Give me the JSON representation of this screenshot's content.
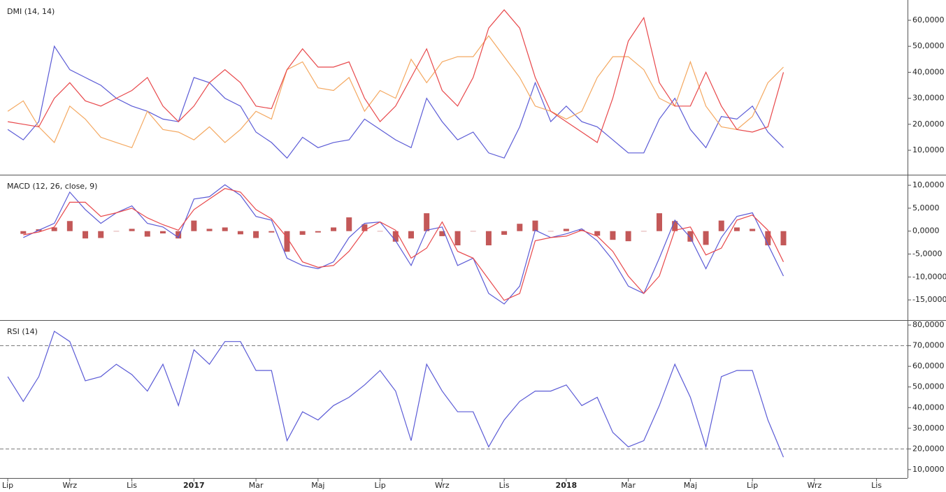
{
  "chart_data": [
    {
      "type": "line",
      "title": "DMI (14, 14)",
      "x": [
        0,
        0.5,
        1,
        1.5,
        2,
        2.5,
        3,
        3.5,
        4,
        4.5,
        5,
        5.5,
        6,
        6.5,
        7,
        7.5,
        8,
        8.5,
        9,
        9.5,
        10,
        10.5,
        11,
        11.5,
        12,
        12.5,
        13,
        13.5,
        14,
        14.5,
        15,
        15.5,
        16,
        16.5,
        17,
        17.5,
        18,
        18.5,
        19,
        19.5,
        20,
        20.5,
        21,
        21.5,
        22,
        22.5,
        23,
        23.5,
        24,
        24.5,
        25
      ],
      "xlim": [
        -0.25,
        29
      ],
      "ylim": [
        0.6,
        67.8
      ],
      "yticks": [
        {
          "value": 10,
          "label": "10,0000"
        },
        {
          "value": 20,
          "label": "20,0000"
        },
        {
          "value": 30,
          "label": "30,0000"
        },
        {
          "value": 40,
          "label": "40,0000"
        },
        {
          "value": 50,
          "label": "50,0000"
        },
        {
          "value": 60,
          "label": "60,0000"
        }
      ],
      "series": [
        {
          "color": "#5b5bd6",
          "values": [
            18,
            14,
            21,
            50,
            41,
            38,
            35,
            30,
            27,
            25,
            22,
            21,
            38,
            36,
            30,
            27,
            17,
            13,
            7,
            15,
            11,
            13,
            14,
            22,
            18,
            14,
            11,
            30,
            21,
            14,
            17,
            9,
            7,
            19,
            36,
            21,
            27,
            21,
            19,
            14,
            9,
            9,
            22,
            30,
            18,
            11,
            23,
            22,
            27,
            17,
            11
          ]
        },
        {
          "color": "#f4a860",
          "values": [
            25,
            29,
            19,
            13,
            27,
            22,
            15,
            13,
            11,
            25,
            18,
            17,
            14,
            19,
            13,
            18,
            25,
            22,
            41,
            44,
            34,
            33,
            38,
            25,
            33,
            30,
            45,
            36,
            44,
            46,
            46,
            54,
            46,
            38,
            27,
            25,
            22,
            25,
            38,
            46,
            46,
            41,
            30,
            27,
            44,
            27,
            19,
            18,
            23,
            36,
            42
          ]
        },
        {
          "color": "#e8484b",
          "values": [
            21,
            20,
            19,
            30,
            36,
            29,
            27,
            30,
            33,
            38,
            27,
            21,
            27,
            36,
            41,
            36,
            27,
            26,
            41,
            49,
            42,
            42,
            44,
            30,
            21,
            27,
            38,
            49,
            33,
            27,
            38,
            57,
            64,
            57,
            38,
            25,
            21,
            17,
            13,
            30,
            52,
            61,
            36,
            27,
            27,
            40,
            27,
            18,
            17,
            19,
            40
          ]
        }
      ]
    },
    {
      "type": "line",
      "title": "MACD (12, 26, close, 9)",
      "x": [
        0,
        0.5,
        1,
        1.5,
        2,
        2.5,
        3,
        3.5,
        4,
        4.5,
        5,
        5.5,
        6,
        6.5,
        7,
        7.5,
        8,
        8.5,
        9,
        9.5,
        10,
        10.5,
        11,
        11.5,
        12,
        12.5,
        13,
        13.5,
        14,
        14.5,
        15,
        15.5,
        16,
        16.5,
        17,
        17.5,
        18,
        18.5,
        19,
        19.5,
        20,
        20.5,
        21,
        21.5,
        22,
        22.5,
        23,
        23.5,
        24,
        24.5,
        25
      ],
      "xlim": [
        -0.25,
        29
      ],
      "ylim": [
        -19.4,
        12.3
      ],
      "yticks": [
        {
          "value": -15,
          "label": "-15,0000"
        },
        {
          "value": -10,
          "label": "-10,0000"
        },
        {
          "value": -5,
          "label": "-5,0000"
        },
        {
          "value": 0,
          "label": "0,0000"
        },
        {
          "value": 5,
          "label": "5,0000"
        },
        {
          "value": 10,
          "label": "10,0000"
        }
      ],
      "series": [
        {
          "type": "bar",
          "color": "#b83b3b",
          "values": [
            null,
            -0.6,
            0.4,
            0.8,
            2.2,
            -1.6,
            -1.5,
            0,
            0.5,
            -1.2,
            -0.5,
            -1.6,
            2.3,
            0.5,
            0.8,
            -0.7,
            -1.5,
            -0.3,
            -4.5,
            -0.8,
            -0.3,
            0.8,
            3.0,
            1.5,
            0,
            -2.3,
            -1.6,
            3.9,
            -1.1,
            -3.1,
            0,
            -3.1,
            -0.8,
            1.6,
            2.3,
            0,
            0.5,
            0.3,
            -1.0,
            -1.9,
            -2.2,
            0,
            3.9,
            2.2,
            -2.3,
            -3.0,
            2.3,
            0.8,
            0.5,
            -3.1,
            -3.1
          ]
        },
        {
          "color": "#5b5bd6",
          "values": [
            null,
            -1.4,
            0.2,
            1.7,
            8.5,
            4.7,
            1.7,
            4.0,
            5.5,
            1.7,
            0.9,
            -1.4,
            7.0,
            7.5,
            10.1,
            7.8,
            3.2,
            2.4,
            -5.9,
            -7.5,
            -8.2,
            -6.7,
            -1.4,
            1.7,
            2.0,
            -2.1,
            -7.5,
            0.2,
            0.9,
            -7.5,
            -5.9,
            -13.6,
            -15.9,
            -12.0,
            0.2,
            -1.4,
            -0.6,
            0.5,
            -2.1,
            -6.3,
            -12.0,
            -13.6,
            -5.9,
            2.4,
            -1.4,
            -8.2,
            -1.4,
            3.2,
            4.0,
            -2.9,
            -9.8
          ]
        },
        {
          "color": "#e8484b",
          "values": [
            null,
            -0.8,
            -0.2,
            0.9,
            6.3,
            6.3,
            3.2,
            4.0,
            5.0,
            2.9,
            1.4,
            0.2,
            4.7,
            7.0,
            9.3,
            8.5,
            4.7,
            2.7,
            -1.4,
            -6.7,
            -7.9,
            -7.5,
            -4.4,
            0.2,
            2.0,
            0.2,
            -5.9,
            -3.7,
            2.0,
            -4.4,
            -5.9,
            -10.5,
            -15.1,
            -13.6,
            -2.1,
            -1.4,
            -1.1,
            0.2,
            -1.1,
            -4.4,
            -9.8,
            -13.6,
            -9.8,
            0.2,
            0.9,
            -5.2,
            -3.7,
            2.4,
            3.5,
            0.2,
            -6.7
          ]
        }
      ]
    },
    {
      "type": "line",
      "title": "RSI (14)",
      "x": [
        0,
        0.5,
        1,
        1.5,
        2,
        2.5,
        3,
        3.5,
        4,
        4.5,
        5,
        5.5,
        6,
        6.5,
        7,
        7.5,
        8,
        8.5,
        9,
        9.5,
        10,
        10.5,
        11,
        11.5,
        12,
        12.5,
        13,
        13.5,
        14,
        14.5,
        15,
        15.5,
        16,
        16.5,
        17,
        17.5,
        18,
        18.5,
        19,
        19.5,
        20,
        20.5,
        21,
        21.5,
        22,
        22.5,
        23,
        23.5,
        24,
        24.5,
        25
      ],
      "xlim": [
        -0.25,
        29
      ],
      "ylim": [
        5.9,
        82.4
      ],
      "xticks": [
        {
          "value": 0,
          "label": "Lip"
        },
        {
          "value": 2,
          "label": "Wrz"
        },
        {
          "value": 4,
          "label": "Lis"
        },
        {
          "value": 6,
          "label": "2017"
        },
        {
          "value": 8,
          "label": "Mar"
        },
        {
          "value": 10,
          "label": "Maj"
        },
        {
          "value": 12,
          "label": "Lip"
        },
        {
          "value": 14,
          "label": "Wrz"
        },
        {
          "value": 16,
          "label": "Lis"
        },
        {
          "value": 18,
          "label": "2018"
        },
        {
          "value": 20,
          "label": "Mar"
        },
        {
          "value": 22,
          "label": "Maj"
        },
        {
          "value": 24,
          "label": "Lip"
        },
        {
          "value": 26,
          "label": "Wrz"
        },
        {
          "value": 28,
          "label": "Lis"
        }
      ],
      "yticks": [
        {
          "value": 10,
          "label": "10,0000"
        },
        {
          "value": 20,
          "label": "20,0000"
        },
        {
          "value": 30,
          "label": "30,0000"
        },
        {
          "value": 40,
          "label": "40,0000"
        },
        {
          "value": 50,
          "label": "50,0000"
        },
        {
          "value": 60,
          "label": "60,0000"
        },
        {
          "value": 70,
          "label": "70,0000"
        },
        {
          "value": 80,
          "label": "80,0000"
        }
      ],
      "levels": [
        70,
        20
      ],
      "series": [
        {
          "color": "#5b5bd6",
          "values": [
            55,
            43,
            55,
            77,
            72,
            53,
            55,
            61,
            56,
            48,
            61,
            41,
            68,
            61,
            72,
            72,
            58,
            58,
            24,
            38,
            34,
            41,
            45,
            51,
            58,
            48,
            24,
            61,
            48,
            38,
            38,
            21,
            34,
            43,
            48,
            48,
            51,
            41,
            45,
            28,
            21,
            24,
            41,
            61,
            45,
            21,
            55,
            58,
            58,
            34,
            16
          ]
        }
      ]
    }
  ]
}
